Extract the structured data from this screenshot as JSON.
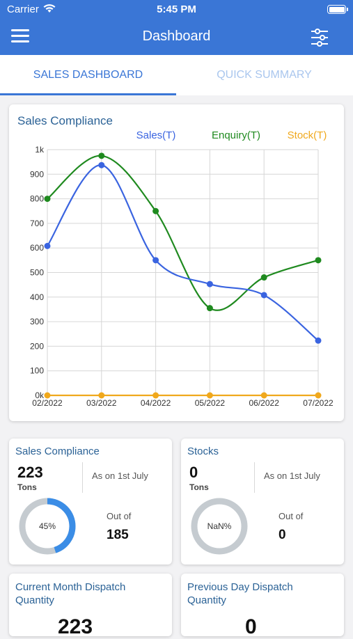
{
  "status": {
    "carrier": "Carrier",
    "time": "5:45 PM"
  },
  "nav": {
    "title": "Dashboard"
  },
  "tabs": [
    {
      "label": "SALES DASHBOARD",
      "active": true
    },
    {
      "label": "QUICK SUMMARY",
      "active": false
    }
  ],
  "chart_card": {
    "title": "Sales Compliance"
  },
  "chart_data": {
    "type": "line",
    "categories": [
      "02/2022",
      "03/2022",
      "04/2022",
      "05/2022",
      "06/2022",
      "07/2022"
    ],
    "series": [
      {
        "name": "Sales(T)",
        "color": "#3a64e0",
        "values": [
          608,
          937,
          550,
          453,
          408,
          223
        ]
      },
      {
        "name": "Enquiry(T)",
        "color": "#1f8a1f",
        "values": [
          800,
          975,
          750,
          355,
          480,
          550
        ]
      },
      {
        "name": "Stock(T)",
        "color": "#f0a81c",
        "values": [
          0,
          0,
          0,
          0,
          0,
          0
        ]
      }
    ],
    "y_ticks": [
      "0k",
      "100",
      "200",
      "300",
      "400",
      "500",
      "600",
      "700",
      "800",
      "900",
      "1k"
    ],
    "ylim": [
      0,
      1000
    ],
    "grid": true,
    "legend": "top-right",
    "smooth": true
  },
  "sales_compliance_card": {
    "title": "Sales Compliance",
    "value": "223",
    "unit": "Tons",
    "note": "As on 1st July",
    "percent": "45%",
    "fraction": 0.45,
    "out_of_label": "Out of",
    "out_of_value": "185"
  },
  "stocks_card": {
    "title": "Stocks",
    "value": "0",
    "unit": "Tons",
    "note": "As on 1st July",
    "percent": "NaN%",
    "fraction": 0,
    "out_of_label": "Out of",
    "out_of_value": "0"
  },
  "dispatch_current": {
    "title": "Current Month Dispatch Quantity",
    "value": "223"
  },
  "dispatch_previous": {
    "title": "Previous Day Dispatch Quantity",
    "value": "0"
  },
  "colors": {
    "primary": "#3a76d6",
    "ring_fill": "#3b8de6",
    "ring_track": "#c5cbd0",
    "title_blue": "#2b6296"
  }
}
